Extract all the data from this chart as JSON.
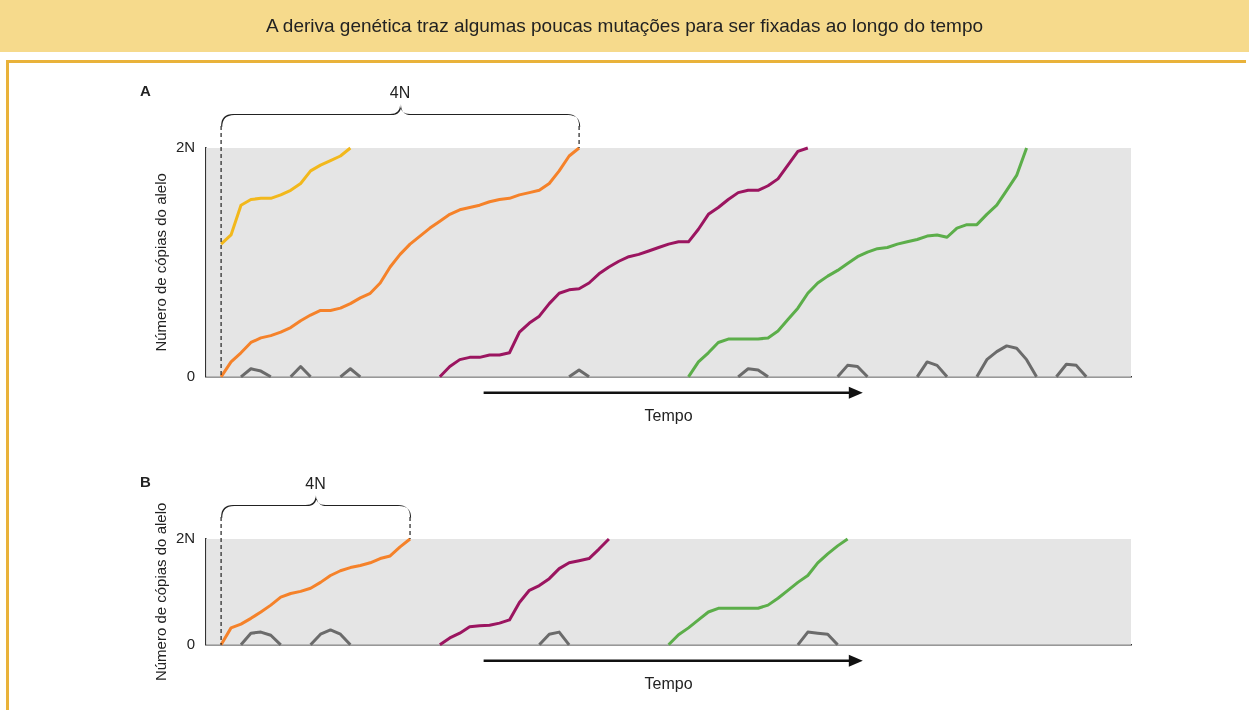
{
  "chart_data": [
    {
      "type": "line",
      "title": "A deriva genética traz algumas poucas mutações para ser fixadas ao longo do tempo",
      "xlabel": "Tempo",
      "ylabel": "Número de cópias do alelo",
      "annotations": [
        "A",
        "4N"
      ],
      "categories": [
        null,
        null,
        null,
        null,
        null,
        null,
        null,
        null,
        null,
        null,
        null,
        null,
        null,
        null,
        null,
        null,
        null,
        null,
        null,
        null,
        null,
        null,
        null,
        null,
        null,
        null,
        null,
        null,
        null,
        null,
        null,
        null,
        null,
        null,
        null,
        null,
        null,
        null,
        null,
        null,
        null,
        null,
        null,
        null,
        null,
        null,
        null,
        null,
        null,
        null,
        null,
        null,
        null,
        null,
        null,
        null,
        null,
        null,
        null,
        null,
        null,
        null,
        null,
        null,
        null,
        null,
        null,
        null,
        null,
        null,
        null,
        null,
        null,
        null,
        null,
        null,
        null,
        null,
        null,
        null,
        null,
        null,
        null,
        null,
        null,
        null,
        null,
        null,
        null,
        null,
        null,
        null,
        null
      ],
      "ylim": [
        0,
        2
      ],
      "yticks": [
        0,
        {
          "value": 2,
          "label": "2N"
        }
      ],
      "grid": false,
      "legend": false,
      "marker": "none",
      "tick_labels": "y",
      "series": [
        {
          "color": "#f2b81c",
          "values": [
            null,
            1.16,
            1.24,
            1.5,
            1.55,
            1.56,
            1.56,
            1.59,
            1.63,
            1.69,
            1.8,
            1.85,
            1.89,
            1.93,
            2,
            null,
            null,
            null,
            null,
            null,
            null,
            null,
            null,
            null,
            null,
            null,
            null,
            null,
            null,
            null,
            null,
            null,
            null,
            null,
            null,
            null,
            null,
            null,
            null,
            null,
            null,
            null,
            null,
            null,
            null,
            null,
            null,
            null,
            null,
            null,
            null,
            null,
            null,
            null,
            null,
            null,
            null,
            null,
            null,
            null,
            null,
            null,
            null,
            null,
            null,
            null,
            null,
            null,
            null,
            null,
            null,
            null,
            null,
            null,
            null,
            null,
            null,
            null,
            null,
            null,
            null,
            null,
            null,
            null,
            null,
            null,
            null,
            null,
            null,
            null,
            null,
            null,
            null
          ]
        },
        {
          "color": "#f5822a",
          "values": [
            null,
            0,
            0.13,
            0.21,
            0.3,
            0.34,
            0.36,
            0.39,
            0.43,
            0.49,
            0.54,
            0.58,
            0.58,
            0.6,
            0.64,
            0.69,
            0.73,
            0.82,
            0.96,
            1.07,
            1.16,
            1.23,
            1.3,
            1.36,
            1.42,
            1.46,
            1.48,
            1.5,
            1.53,
            1.55,
            1.56,
            1.59,
            1.61,
            1.63,
            1.69,
            1.8,
            1.93,
            2,
            null,
            null,
            null,
            null,
            null,
            null,
            null,
            null,
            null,
            null,
            null,
            null,
            null,
            null,
            null,
            null,
            null,
            null,
            null,
            null,
            null,
            null,
            null,
            null,
            null,
            null,
            null,
            null,
            null,
            null,
            null,
            null,
            null,
            null,
            null,
            null,
            null,
            null,
            null,
            null,
            null,
            null,
            null,
            null,
            null,
            null,
            null,
            null,
            null,
            null,
            null,
            null,
            null,
            null,
            null
          ]
        },
        {
          "color": "#9b1560",
          "values": [
            null,
            null,
            null,
            null,
            null,
            null,
            null,
            null,
            null,
            null,
            null,
            null,
            null,
            null,
            null,
            null,
            null,
            null,
            null,
            null,
            null,
            null,
            null,
            0,
            0.09,
            0.15,
            0.17,
            0.17,
            0.19,
            0.19,
            0.21,
            0.39,
            0.47,
            0.53,
            0.64,
            0.73,
            0.76,
            0.77,
            0.82,
            0.9,
            0.96,
            1.01,
            1.05,
            1.07,
            1.1,
            1.13,
            1.16,
            1.18,
            1.18,
            1.29,
            1.42,
            1.48,
            1.55,
            1.61,
            1.63,
            1.63,
            1.67,
            1.73,
            1.85,
            1.97,
            2,
            null,
            null,
            null,
            null,
            null,
            null,
            null,
            null,
            null,
            null,
            null,
            null,
            null,
            null,
            null,
            null,
            null,
            null,
            null,
            null,
            null,
            null,
            null,
            null,
            null,
            null,
            null,
            null,
            null,
            null,
            null,
            null
          ]
        },
        {
          "color": "#5cae4a",
          "values": [
            null,
            null,
            null,
            null,
            null,
            null,
            null,
            null,
            null,
            null,
            null,
            null,
            null,
            null,
            null,
            null,
            null,
            null,
            null,
            null,
            null,
            null,
            null,
            null,
            null,
            null,
            null,
            null,
            null,
            null,
            null,
            null,
            null,
            null,
            null,
            null,
            null,
            null,
            null,
            null,
            null,
            null,
            null,
            null,
            null,
            null,
            null,
            null,
            0,
            0.13,
            0.21,
            0.3,
            0.33,
            0.33,
            0.33,
            0.33,
            0.34,
            0.4,
            0.5,
            0.6,
            0.73,
            0.82,
            0.88,
            0.93,
            0.99,
            1.05,
            1.09,
            1.12,
            1.13,
            1.16,
            1.18,
            1.2,
            1.23,
            1.24,
            1.22,
            1.3,
            1.33,
            1.33,
            1.42,
            1.5,
            1.63,
            1.76,
            2,
            null,
            null,
            null,
            null,
            null,
            null,
            null,
            null,
            null,
            null
          ]
        },
        {
          "color": "#6b6b6b",
          "values": [
            null,
            null,
            null,
            0,
            0.07,
            0.05,
            0,
            null,
            null,
            null,
            null,
            null,
            null,
            null,
            null,
            null,
            null,
            null,
            null,
            null,
            null,
            null,
            null,
            null,
            null,
            null,
            null,
            null,
            null,
            null,
            null,
            null,
            null,
            null,
            null,
            null,
            null,
            null,
            null,
            null,
            null,
            null,
            null,
            null,
            null,
            null,
            null,
            null,
            null,
            null,
            null,
            null,
            null,
            null,
            null,
            null,
            null,
            null,
            null,
            null,
            null,
            null,
            null,
            null,
            null,
            null,
            null,
            null,
            null,
            null,
            null,
            null,
            null,
            null,
            null,
            null,
            null,
            null,
            null,
            null,
            null,
            null,
            null,
            null,
            null,
            null,
            null,
            null,
            null,
            null,
            null,
            null,
            null
          ]
        },
        {
          "color": "#6b6b6b",
          "values": [
            null,
            null,
            null,
            null,
            null,
            null,
            null,
            null,
            0,
            0.09,
            0,
            null,
            null,
            null,
            null,
            null,
            null,
            null,
            null,
            null,
            null,
            null,
            null,
            null,
            null,
            null,
            null,
            null,
            null,
            null,
            null,
            null,
            null,
            null,
            null,
            null,
            null,
            null,
            null,
            null,
            null,
            null,
            null,
            null,
            null,
            null,
            null,
            null,
            null,
            null,
            null,
            null,
            null,
            null,
            null,
            null,
            null,
            null,
            null,
            null,
            null,
            null,
            null,
            null,
            null,
            null,
            null,
            null,
            null,
            null,
            null,
            null,
            null,
            null,
            null,
            null,
            null,
            null,
            null,
            null,
            null,
            null,
            null,
            null,
            null,
            null,
            null,
            null,
            null,
            null,
            null,
            null,
            null
          ]
        },
        {
          "color": "#6b6b6b",
          "values": [
            null,
            null,
            null,
            null,
            null,
            null,
            null,
            null,
            null,
            null,
            null,
            null,
            null,
            0,
            0.07,
            0,
            null,
            null,
            null,
            null,
            null,
            null,
            null,
            null,
            null,
            null,
            null,
            null,
            null,
            null,
            null,
            null,
            null,
            null,
            null,
            null,
            null,
            null,
            null,
            null,
            null,
            null,
            null,
            null,
            null,
            null,
            null,
            null,
            null,
            null,
            null,
            null,
            null,
            null,
            null,
            null,
            null,
            null,
            null,
            null,
            null,
            null,
            null,
            null,
            null,
            null,
            null,
            null,
            null,
            null,
            null,
            null,
            null,
            null,
            null,
            null,
            null,
            null,
            null,
            null,
            null,
            null,
            null,
            null,
            null,
            null,
            null,
            null,
            null,
            null,
            null,
            null,
            null
          ]
        },
        {
          "color": "#6b6b6b",
          "values": [
            null,
            null,
            null,
            null,
            null,
            null,
            null,
            null,
            null,
            null,
            null,
            null,
            null,
            null,
            null,
            null,
            null,
            null,
            null,
            null,
            null,
            null,
            null,
            null,
            null,
            null,
            null,
            null,
            null,
            null,
            null,
            null,
            null,
            null,
            null,
            null,
            0,
            0.06,
            0,
            null,
            null,
            null,
            null,
            null,
            null,
            null,
            null,
            null,
            null,
            null,
            null,
            null,
            null,
            null,
            null,
            null,
            null,
            null,
            null,
            null,
            null,
            null,
            null,
            null,
            null,
            null,
            null,
            null,
            null,
            null,
            null,
            null,
            null,
            null,
            null,
            null,
            null,
            null,
            null,
            null,
            null,
            null,
            null,
            null,
            null,
            null,
            null,
            null,
            null,
            null,
            null,
            null,
            null
          ]
        },
        {
          "color": "#6b6b6b",
          "values": [
            null,
            null,
            null,
            null,
            null,
            null,
            null,
            null,
            null,
            null,
            null,
            null,
            null,
            null,
            null,
            null,
            null,
            null,
            null,
            null,
            null,
            null,
            null,
            null,
            null,
            null,
            null,
            null,
            null,
            null,
            null,
            null,
            null,
            null,
            null,
            null,
            null,
            null,
            null,
            null,
            null,
            null,
            null,
            null,
            null,
            null,
            null,
            null,
            null,
            null,
            null,
            null,
            null,
            0,
            0.07,
            0.06,
            0,
            null,
            null,
            null,
            null,
            null,
            null,
            null,
            null,
            null,
            null,
            null,
            null,
            null,
            null,
            null,
            null,
            null,
            null,
            null,
            null,
            null,
            null,
            null,
            null,
            null,
            null,
            null,
            null,
            null,
            null,
            null,
            null,
            null,
            null,
            null,
            null
          ]
        },
        {
          "color": "#6b6b6b",
          "values": [
            null,
            null,
            null,
            null,
            null,
            null,
            null,
            null,
            null,
            null,
            null,
            null,
            null,
            null,
            null,
            null,
            null,
            null,
            null,
            null,
            null,
            null,
            null,
            null,
            null,
            null,
            null,
            null,
            null,
            null,
            null,
            null,
            null,
            null,
            null,
            null,
            null,
            null,
            null,
            null,
            null,
            null,
            null,
            null,
            null,
            null,
            null,
            null,
            null,
            null,
            null,
            null,
            null,
            null,
            null,
            null,
            null,
            null,
            null,
            null,
            null,
            null,
            null,
            0,
            0.1,
            0.09,
            0,
            null,
            null,
            null,
            null,
            null,
            null,
            null,
            null,
            null,
            null,
            null,
            null,
            null,
            null,
            null,
            null,
            null,
            null,
            null,
            null,
            null,
            null,
            null,
            null,
            null,
            null
          ]
        },
        {
          "color": "#6b6b6b",
          "values": [
            null,
            null,
            null,
            null,
            null,
            null,
            null,
            null,
            null,
            null,
            null,
            null,
            null,
            null,
            null,
            null,
            null,
            null,
            null,
            null,
            null,
            null,
            null,
            null,
            null,
            null,
            null,
            null,
            null,
            null,
            null,
            null,
            null,
            null,
            null,
            null,
            null,
            null,
            null,
            null,
            null,
            null,
            null,
            null,
            null,
            null,
            null,
            null,
            null,
            null,
            null,
            null,
            null,
            null,
            null,
            null,
            null,
            null,
            null,
            null,
            null,
            null,
            null,
            null,
            null,
            null,
            null,
            null,
            null,
            null,
            null,
            0,
            0.13,
            0.1,
            0,
            null,
            null,
            null,
            null,
            null,
            null,
            null,
            null,
            null,
            null,
            null,
            null,
            null,
            null,
            null,
            null,
            null,
            null
          ]
        },
        {
          "color": "#6b6b6b",
          "values": [
            null,
            null,
            null,
            null,
            null,
            null,
            null,
            null,
            null,
            null,
            null,
            null,
            null,
            null,
            null,
            null,
            null,
            null,
            null,
            null,
            null,
            null,
            null,
            null,
            null,
            null,
            null,
            null,
            null,
            null,
            null,
            null,
            null,
            null,
            null,
            null,
            null,
            null,
            null,
            null,
            null,
            null,
            null,
            null,
            null,
            null,
            null,
            null,
            null,
            null,
            null,
            null,
            null,
            null,
            null,
            null,
            null,
            null,
            null,
            null,
            null,
            null,
            null,
            null,
            null,
            null,
            null,
            null,
            null,
            null,
            null,
            null,
            null,
            null,
            null,
            null,
            null,
            0,
            0.15,
            0.22,
            0.27,
            0.25,
            0.15,
            0,
            null,
            null,
            null,
            null,
            null,
            null,
            null,
            null,
            null
          ]
        },
        {
          "color": "#6b6b6b",
          "values": [
            null,
            null,
            null,
            null,
            null,
            null,
            null,
            null,
            null,
            null,
            null,
            null,
            null,
            null,
            null,
            null,
            null,
            null,
            null,
            null,
            null,
            null,
            null,
            null,
            null,
            null,
            null,
            null,
            null,
            null,
            null,
            null,
            null,
            null,
            null,
            null,
            null,
            null,
            null,
            null,
            null,
            null,
            null,
            null,
            null,
            null,
            null,
            null,
            null,
            null,
            null,
            null,
            null,
            null,
            null,
            null,
            null,
            null,
            null,
            null,
            null,
            null,
            null,
            null,
            null,
            null,
            null,
            null,
            null,
            null,
            null,
            null,
            null,
            null,
            null,
            null,
            null,
            null,
            null,
            null,
            null,
            null,
            null,
            null,
            null,
            0,
            0.11,
            0.1,
            0,
            null,
            null,
            null,
            null
          ]
        }
      ]
    },
    {
      "type": "line",
      "xlabel": "Tempo",
      "ylabel": "Número de cópias do alelo",
      "annotations": [
        "B",
        "4N"
      ],
      "categories": [
        null,
        null,
        null,
        null,
        null,
        null,
        null,
        null,
        null,
        null,
        null,
        null,
        null,
        null,
        null,
        null,
        null,
        null,
        null,
        null,
        null,
        null,
        null,
        null,
        null,
        null,
        null,
        null,
        null,
        null,
        null,
        null,
        null,
        null,
        null,
        null,
        null,
        null,
        null,
        null,
        null,
        null,
        null,
        null,
        null,
        null,
        null,
        null,
        null,
        null,
        null,
        null,
        null,
        null,
        null,
        null,
        null,
        null,
        null,
        null,
        null,
        null,
        null,
        null,
        null,
        null,
        null,
        null,
        null,
        null,
        null,
        null,
        null,
        null,
        null,
        null,
        null,
        null,
        null,
        null,
        null,
        null,
        null,
        null,
        null,
        null,
        null,
        null,
        null,
        null,
        null,
        null,
        null
      ],
      "ylim": [
        0,
        2
      ],
      "yticks": [
        0,
        {
          "value": 2,
          "label": "2N"
        }
      ],
      "grid": false,
      "legend": false,
      "marker": "none",
      "tick_labels": "y",
      "series": [
        {
          "color": "#f5822a",
          "values": [
            null,
            0,
            0.32,
            0.39,
            0.5,
            0.62,
            0.75,
            0.9,
            0.97,
            1.01,
            1.07,
            1.18,
            1.31,
            1.4,
            1.46,
            1.5,
            1.55,
            1.63,
            1.68,
            1.85,
            2,
            null,
            null,
            null,
            null,
            null,
            null,
            null,
            null,
            null,
            null,
            null,
            null,
            null,
            null,
            null,
            null,
            null,
            null,
            null,
            null,
            null,
            null,
            null,
            null,
            null,
            null,
            null,
            null,
            null,
            null,
            null,
            null,
            null,
            null,
            null,
            null,
            null,
            null,
            null,
            null,
            null,
            null,
            null,
            null,
            null,
            null,
            null,
            null,
            null,
            null,
            null,
            null,
            null,
            null,
            null,
            null,
            null,
            null,
            null,
            null,
            null,
            null,
            null,
            null,
            null,
            null,
            null,
            null,
            null,
            null,
            null,
            null
          ]
        },
        {
          "color": "#9b1560",
          "values": [
            null,
            null,
            null,
            null,
            null,
            null,
            null,
            null,
            null,
            null,
            null,
            null,
            null,
            null,
            null,
            null,
            null,
            null,
            null,
            null,
            null,
            null,
            null,
            0,
            0.13,
            0.22,
            0.34,
            0.36,
            0.37,
            0.41,
            0.47,
            0.8,
            1.03,
            1.12,
            1.25,
            1.44,
            1.55,
            1.59,
            1.63,
            1.81,
            2,
            null,
            null,
            null,
            null,
            null,
            null,
            null,
            null,
            null,
            null,
            null,
            null,
            null,
            null,
            null,
            null,
            null,
            null,
            null,
            null,
            null,
            null,
            null,
            null,
            null,
            null,
            null,
            null,
            null,
            null,
            null,
            null,
            null,
            null,
            null,
            null,
            null,
            null,
            null,
            null,
            null,
            null,
            null,
            null,
            null,
            null,
            null,
            null,
            null,
            null,
            null,
            null
          ]
        },
        {
          "color": "#5cae4a",
          "values": [
            null,
            null,
            null,
            null,
            null,
            null,
            null,
            null,
            null,
            null,
            null,
            null,
            null,
            null,
            null,
            null,
            null,
            null,
            null,
            null,
            null,
            null,
            null,
            null,
            null,
            null,
            null,
            null,
            null,
            null,
            null,
            null,
            null,
            null,
            null,
            null,
            null,
            null,
            null,
            null,
            null,
            null,
            null,
            null,
            null,
            null,
            0,
            0.19,
            0.32,
            0.47,
            0.62,
            0.69,
            0.69,
            0.69,
            0.69,
            0.69,
            0.75,
            0.88,
            1.03,
            1.18,
            1.31,
            1.55,
            1.72,
            1.87,
            2,
            null,
            null,
            null,
            null,
            null,
            null,
            null,
            null,
            null,
            null,
            null,
            null,
            null,
            null,
            null,
            null,
            null,
            null,
            null,
            null,
            null,
            null,
            null,
            null,
            null,
            null,
            null,
            null
          ]
        },
        {
          "color": "#6b6b6b",
          "values": [
            null,
            null,
            null,
            0,
            0.22,
            0.24,
            0.18,
            0,
            null,
            null,
            null,
            null,
            null,
            null,
            null,
            null,
            null,
            null,
            null,
            null,
            null,
            null,
            null,
            null,
            null,
            null,
            null,
            null,
            null,
            null,
            null,
            null,
            null,
            null,
            null,
            null,
            null,
            null,
            null,
            null,
            null,
            null,
            null,
            null,
            null,
            null,
            null,
            null,
            null,
            null,
            null,
            null,
            null,
            null,
            null,
            null,
            null,
            null,
            null,
            null,
            null,
            null,
            null,
            null,
            null,
            null,
            null,
            null,
            null,
            null,
            null,
            null,
            null,
            null,
            null,
            null,
            null,
            null,
            null,
            null,
            null,
            null,
            null,
            null,
            null,
            null,
            null,
            null,
            null,
            null,
            null,
            null,
            null
          ]
        },
        {
          "color": "#6b6b6b",
          "values": [
            null,
            null,
            null,
            null,
            null,
            null,
            null,
            null,
            null,
            null,
            0,
            0.2,
            0.28,
            0.2,
            0,
            null,
            null,
            null,
            null,
            null,
            null,
            null,
            null,
            null,
            null,
            null,
            null,
            null,
            null,
            null,
            null,
            null,
            null,
            null,
            null,
            null,
            null,
            null,
            null,
            null,
            null,
            null,
            null,
            null,
            null,
            null,
            null,
            null,
            null,
            null,
            null,
            null,
            null,
            null,
            null,
            null,
            null,
            null,
            null,
            null,
            null,
            null,
            null,
            null,
            null,
            null,
            null,
            null,
            null,
            null,
            null,
            null,
            null,
            null,
            null,
            null,
            null,
            null,
            null,
            null,
            null,
            null,
            null,
            null,
            null,
            null,
            null,
            null,
            null,
            null,
            null,
            null,
            null
          ]
        },
        {
          "color": "#6b6b6b",
          "values": [
            null,
            null,
            null,
            null,
            null,
            null,
            null,
            null,
            null,
            null,
            null,
            null,
            null,
            null,
            null,
            null,
            null,
            null,
            null,
            null,
            null,
            null,
            null,
            null,
            null,
            null,
            null,
            null,
            null,
            null,
            null,
            null,
            null,
            0,
            0.2,
            0.24,
            0,
            null,
            null,
            null,
            null,
            null,
            null,
            null,
            null,
            null,
            null,
            null,
            null,
            null,
            null,
            null,
            null,
            null,
            null,
            null,
            null,
            null,
            null,
            null,
            null,
            null,
            null,
            null,
            null,
            null,
            null,
            null,
            null,
            null,
            null,
            null,
            null,
            null,
            null,
            null,
            null,
            null,
            null,
            null,
            null,
            null,
            null,
            null,
            null,
            null,
            null,
            null,
            null,
            null,
            null,
            null,
            null
          ]
        },
        {
          "color": "#6b6b6b",
          "values": [
            null,
            null,
            null,
            null,
            null,
            null,
            null,
            null,
            null,
            null,
            null,
            null,
            null,
            null,
            null,
            null,
            null,
            null,
            null,
            null,
            null,
            null,
            null,
            null,
            null,
            null,
            null,
            null,
            null,
            null,
            null,
            null,
            null,
            null,
            null,
            null,
            null,
            null,
            null,
            null,
            null,
            null,
            null,
            null,
            null,
            null,
            null,
            null,
            null,
            null,
            null,
            null,
            null,
            null,
            null,
            null,
            null,
            null,
            null,
            0,
            0.24,
            0.22,
            0.2,
            0,
            null,
            null,
            null,
            null,
            null,
            null,
            null,
            null,
            null,
            null,
            null,
            null,
            null,
            null,
            null,
            null,
            null,
            null,
            null,
            null,
            null,
            null,
            null,
            null,
            null,
            null,
            null,
            null,
            null
          ]
        }
      ]
    }
  ]
}
